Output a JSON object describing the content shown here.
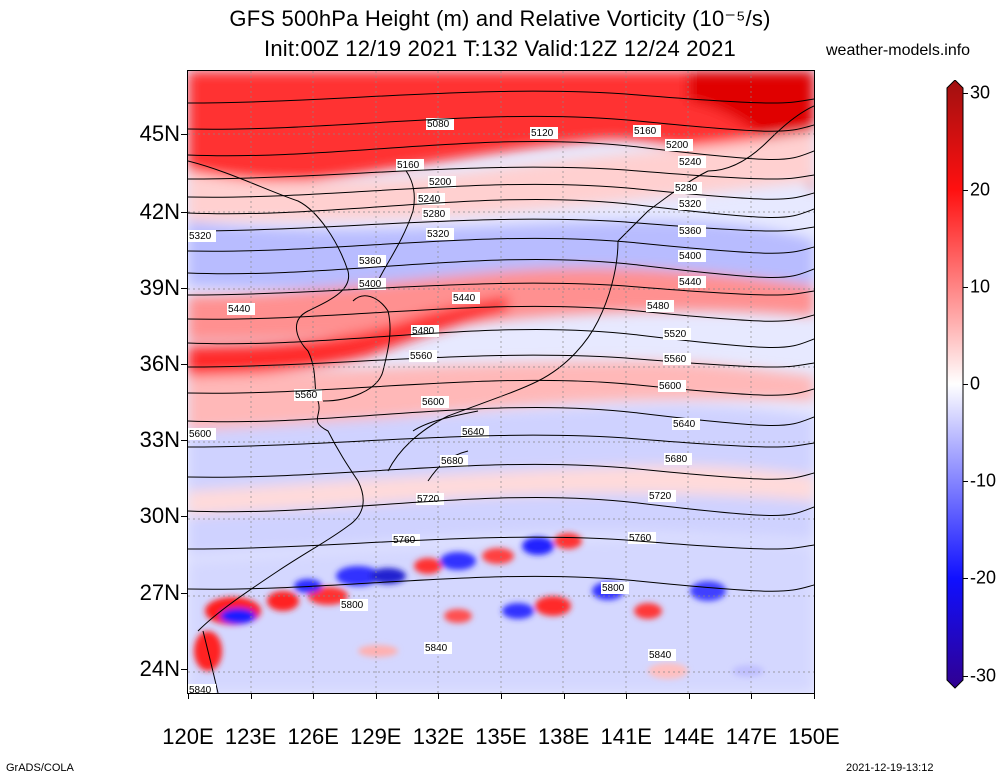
{
  "header": {
    "title_line1": "GFS 500hPa Height (m) and Relative Vorticity (10⁻⁵/s)",
    "title_line2": "Init:00Z 12/19 2021 T:132 Valid:12Z 12/24 2021",
    "site": "weather-models.info"
  },
  "map": {
    "lat_labels": [
      "45N",
      "42N",
      "39N",
      "36N",
      "33N",
      "30N",
      "27N",
      "24N"
    ],
    "lon_labels": [
      "120E",
      "123E",
      "126E",
      "129E",
      "132E",
      "135E",
      "138E",
      "141E",
      "144E",
      "147E",
      "150E"
    ],
    "height_contours": [
      {
        "value": "5080",
        "label": "5080"
      },
      {
        "value": "5120",
        "label": "5120"
      },
      {
        "value": "5160",
        "label": "5160"
      },
      {
        "value": "5200",
        "label": "5200"
      },
      {
        "value": "5240",
        "label": "5240"
      },
      {
        "value": "5280",
        "label": "5280"
      },
      {
        "value": "5320",
        "label": "5320"
      },
      {
        "value": "5360",
        "label": "5360"
      },
      {
        "value": "5400",
        "label": "5400"
      },
      {
        "value": "5440",
        "label": "5440"
      },
      {
        "value": "5480",
        "label": "5480"
      },
      {
        "value": "5520",
        "label": "5520"
      },
      {
        "value": "5560",
        "label": "5560"
      },
      {
        "value": "5600",
        "label": "5600"
      },
      {
        "value": "5640",
        "label": "5640"
      },
      {
        "value": "5680",
        "label": "5680"
      },
      {
        "value": "5720",
        "label": "5720"
      },
      {
        "value": "5760",
        "label": "5760"
      },
      {
        "value": "5800",
        "label": "5800"
      },
      {
        "value": "5840",
        "label": "5840"
      }
    ]
  },
  "colorbar": {
    "labels": [
      "30",
      "20",
      "10",
      "0",
      "-10",
      "-20",
      "-30"
    ],
    "colors": {
      "top": "#a01010",
      "red": "#ff1010",
      "light_red": "#ffb0b0",
      "white": "#ffffff",
      "light_blue": "#b0b0ff",
      "blue": "#1010ff",
      "bottom": "#300090"
    }
  },
  "footer": {
    "left": "GrADS/COLA",
    "right": "2021-12-19-13:12"
  }
}
